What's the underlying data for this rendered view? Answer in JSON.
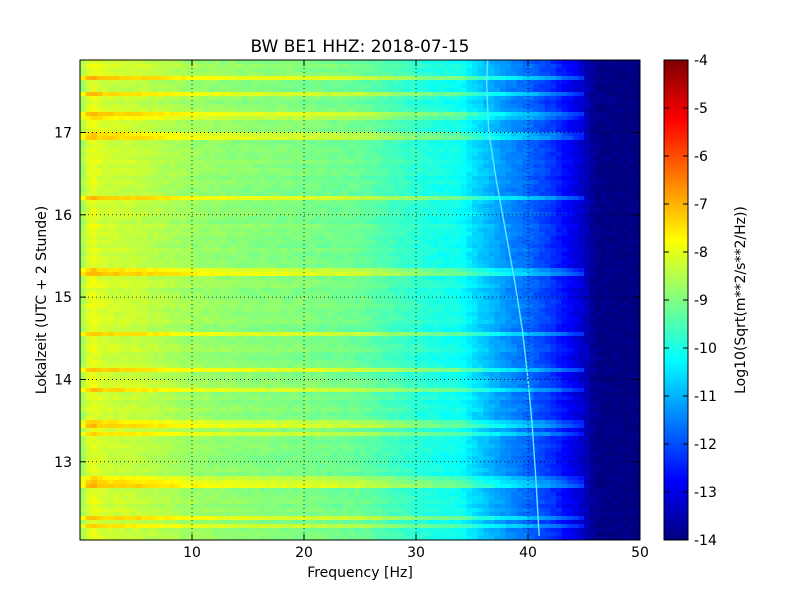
{
  "chart_data": {
    "type": "heatmap",
    "title": "BW BE1 HHZ: 2018-07-15",
    "xlabel": "Frequency [Hz]",
    "ylabel": "Lokalzeit (UTC + 2 Stunde)",
    "xlim": [
      0,
      50
    ],
    "ylim": [
      17.88,
      12.05
    ],
    "x_ticks": [
      "10",
      "20",
      "30",
      "40",
      "50"
    ],
    "x_tick_values": [
      10,
      20,
      30,
      40,
      50
    ],
    "y_ticks": [
      "13",
      "14",
      "15",
      "16",
      "17"
    ],
    "y_tick_values": [
      13,
      14,
      15,
      16,
      17
    ],
    "grid": true,
    "colormap": "jet",
    "colorbar": {
      "label": "Log10(Sqrt(m**2/s**2/Hz))",
      "range": [
        -14,
        -4
      ],
      "ticks": [
        "-4",
        "-5",
        "-6",
        "-7",
        "-8",
        "-9",
        "-10",
        "-11",
        "-12",
        "-13",
        "-14"
      ],
      "tick_values": [
        -4,
        -5,
        -6,
        -7,
        -8,
        -9,
        -10,
        -11,
        -12,
        -13,
        -14
      ]
    },
    "spectrum_profile": {
      "frequency_hz": [
        0,
        0.5,
        1,
        2,
        5,
        10,
        15,
        20,
        25,
        30,
        32,
        34,
        35,
        38,
        40,
        42,
        44,
        45,
        46,
        50
      ],
      "log_psd": [
        -8.9,
        -8.3,
        -7.9,
        -8.2,
        -8.3,
        -8.7,
        -8.9,
        -9.0,
        -9.2,
        -9.8,
        -10.0,
        -10.1,
        -10.5,
        -11.3,
        -11.7,
        -12.2,
        -12.9,
        -13.3,
        -13.9,
        -14.0
      ]
    },
    "drifting_line": {
      "time": [
        12.1,
        12.8,
        13.4,
        14.0,
        14.6,
        15.2,
        15.8,
        16.4,
        17.0,
        17.6,
        17.88
      ],
      "frequency_hz": [
        41.0,
        40.7,
        40.4,
        40.0,
        39.5,
        38.8,
        38.0,
        37.2,
        36.5,
        36.3,
        36.4
      ]
    }
  }
}
